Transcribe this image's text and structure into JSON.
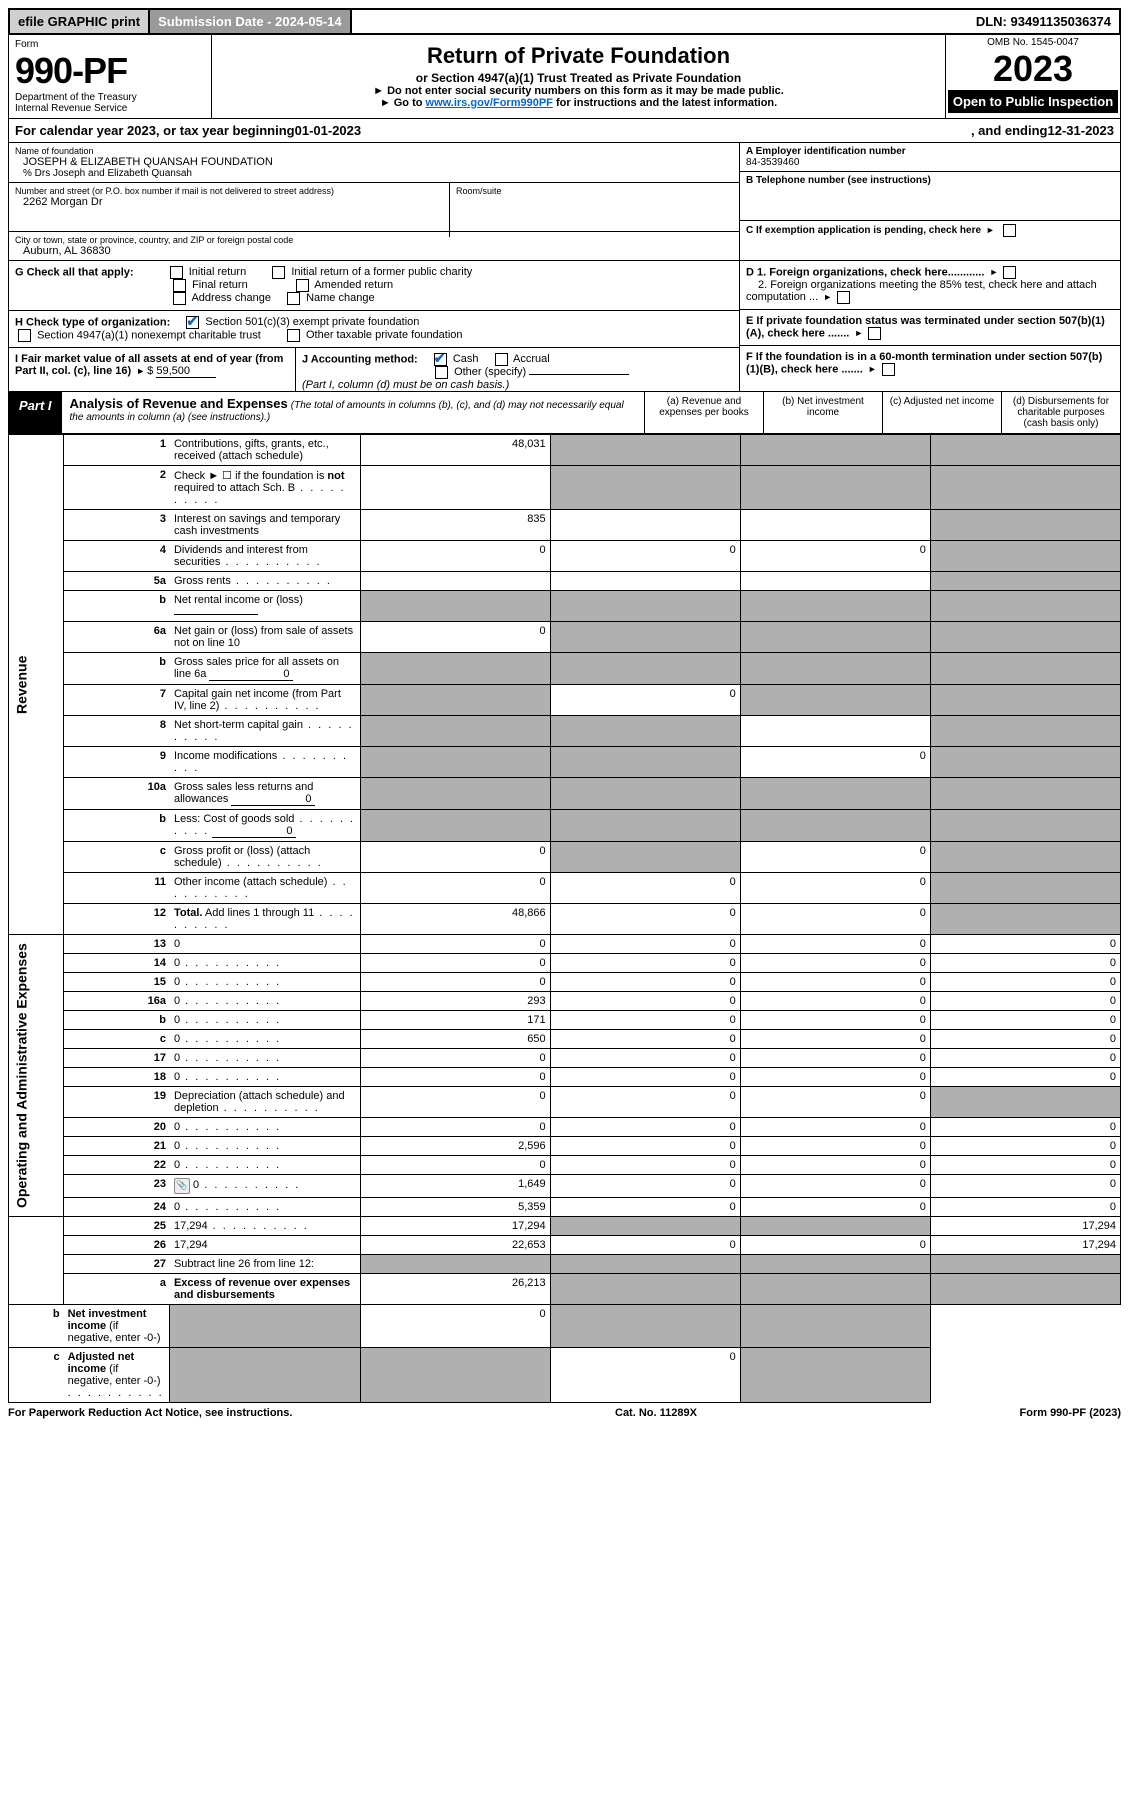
{
  "topbar": {
    "efile": "efile GRAPHIC print",
    "sub_date_label": "Submission Date - ",
    "sub_date": "2024-05-14",
    "dln_label": "DLN: ",
    "dln": "93491135036374"
  },
  "header": {
    "form_label": "Form",
    "form_no": "990-PF",
    "dept": "Department of the Treasury",
    "irs": "Internal Revenue Service",
    "title": "Return of Private Foundation",
    "subtitle": "or Section 4947(a)(1) Trust Treated as Private Foundation",
    "note1": "► Do not enter social security numbers on this form as it may be made public.",
    "note2_pre": "► Go to ",
    "note2_link": "www.irs.gov/Form990PF",
    "note2_post": " for instructions and the latest information.",
    "omb": "OMB No. 1545-0047",
    "year": "2023",
    "open": "Open to Public Inspection"
  },
  "cal_year": {
    "pre": "For calendar year 2023, or tax year beginning ",
    "begin": "01-01-2023",
    "mid": ", and ending ",
    "end": "12-31-2023"
  },
  "info": {
    "name_label": "Name of foundation",
    "name": "JOSEPH & ELIZABETH QUANSAH FOUNDATION",
    "care_of": "% Drs Joseph and Elizabeth Quansah",
    "addr_label": "Number and street (or P.O. box number if mail is not delivered to street address)",
    "addr": "2262 Morgan Dr",
    "room_label": "Room/suite",
    "city_label": "City or town, state or province, country, and ZIP or foreign postal code",
    "city": "Auburn, AL  36830",
    "a_label": "A Employer identification number",
    "a_val": "84-3539460",
    "b_label": "B Telephone number (see instructions)",
    "c_label": "C If exemption application is pending, check here",
    "d1": "D 1. Foreign organizations, check here............",
    "d2": "2. Foreign organizations meeting the 85% test, check here and attach computation ...",
    "e": "E  If private foundation status was terminated under section 507(b)(1)(A), check here .......",
    "f": "F  If the foundation is in a 60-month termination under section 507(b)(1)(B), check here .......",
    "g_label": "G Check all that apply:",
    "g_opts": [
      "Initial return",
      "Initial return of a former public charity",
      "Final return",
      "Amended return",
      "Address change",
      "Name change"
    ],
    "h_label": "H Check type of organization:",
    "h_opts": [
      "Section 501(c)(3) exempt private foundation",
      "Section 4947(a)(1) nonexempt charitable trust",
      "Other taxable private foundation"
    ],
    "i_label": "I Fair market value of all assets at end of year (from Part II, col. (c), line 16)",
    "i_val": "59,500",
    "j_label": "J Accounting method:",
    "j_opts": [
      "Cash",
      "Accrual"
    ],
    "j_other": "Other (specify)",
    "j_note": "(Part I, column (d) must be on cash basis.)"
  },
  "part1": {
    "label": "Part I",
    "title": "Analysis of Revenue and Expenses",
    "note": "(The total of amounts in columns (b), (c), and (d) may not necessarily equal the amounts in column (a) (see instructions).)",
    "cols": {
      "a": "(a)   Revenue and expenses per books",
      "b": "(b)   Net investment income",
      "c": "(c)   Adjusted net income",
      "d": "(d)   Disbursements for charitable purposes (cash basis only)"
    }
  },
  "sections": {
    "revenue": "Revenue",
    "expenses": "Operating and Administrative Expenses"
  },
  "rows": [
    {
      "n": "1",
      "d": "Contributions, gifts, grants, etc., received (attach schedule)",
      "a": "48,031",
      "b_sh": true,
      "c_sh": true,
      "d_sh": true
    },
    {
      "n": "2",
      "d": "Check ► ☐ if the foundation is <b>not</b> required to attach Sch. B",
      "dots": true,
      "a": "",
      "b_sh": true,
      "c_sh": true,
      "d_sh": true
    },
    {
      "n": "3",
      "d": "Interest on savings and temporary cash investments",
      "a": "835",
      "b": "",
      "c": "",
      "d_sh": true
    },
    {
      "n": "4",
      "d": "Dividends and interest from securities",
      "dots": true,
      "a": "0",
      "b": "0",
      "c": "0",
      "d_sh": true
    },
    {
      "n": "5a",
      "d": "Gross rents",
      "dots": true,
      "a": "",
      "b": "",
      "c": "",
      "d_sh": true
    },
    {
      "n": "b",
      "d": "Net rental income or (loss)",
      "inline": "",
      "a_sh": true,
      "b_sh": true,
      "c_sh": true,
      "d_sh": true
    },
    {
      "n": "6a",
      "d": "Net gain or (loss) from sale of assets not on line 10",
      "a": "0",
      "b_sh": true,
      "c_sh": true,
      "d_sh": true
    },
    {
      "n": "b",
      "d": "Gross sales price for all assets on line 6a",
      "inline": "0",
      "a_sh": true,
      "b_sh": true,
      "c_sh": true,
      "d_sh": true
    },
    {
      "n": "7",
      "d": "Capital gain net income (from Part IV, line 2)",
      "dots": true,
      "a_sh": true,
      "b": "0",
      "c_sh": true,
      "d_sh": true
    },
    {
      "n": "8",
      "d": "Net short-term capital gain",
      "dots": true,
      "a_sh": true,
      "b_sh": true,
      "c": "",
      "d_sh": true
    },
    {
      "n": "9",
      "d": "Income modifications",
      "dots": true,
      "a_sh": true,
      "b_sh": true,
      "c": "0",
      "d_sh": true
    },
    {
      "n": "10a",
      "d": "Gross sales less returns and allowances",
      "inline": "0",
      "a_sh": true,
      "b_sh": true,
      "c_sh": true,
      "d_sh": true
    },
    {
      "n": "b",
      "d": "Less: Cost of goods sold",
      "dots": true,
      "inline": "0",
      "a_sh": true,
      "b_sh": true,
      "c_sh": true,
      "d_sh": true
    },
    {
      "n": "c",
      "d": "Gross profit or (loss) (attach schedule)",
      "dots": true,
      "a": "0",
      "b_sh": true,
      "c": "0",
      "d_sh": true
    },
    {
      "n": "11",
      "d": "Other income (attach schedule)",
      "dots": true,
      "a": "0",
      "b": "0",
      "c": "0",
      "d_sh": true
    },
    {
      "n": "12",
      "d": "<b>Total.</b> Add lines 1 through 11",
      "dots": true,
      "a": "48,866",
      "b": "0",
      "c": "0",
      "d_sh": true
    },
    {
      "n": "13",
      "d": "0",
      "a": "0",
      "b": "0",
      "c": "0"
    },
    {
      "n": "14",
      "d": "0",
      "dots": true,
      "a": "0",
      "b": "0",
      "c": "0"
    },
    {
      "n": "15",
      "d": "0",
      "dots": true,
      "a": "0",
      "b": "0",
      "c": "0"
    },
    {
      "n": "16a",
      "d": "0",
      "dots": true,
      "a": "293",
      "b": "0",
      "c": "0"
    },
    {
      "n": "b",
      "d": "0",
      "dots": true,
      "a": "171",
      "b": "0",
      "c": "0"
    },
    {
      "n": "c",
      "d": "0",
      "dots": true,
      "a": "650",
      "b": "0",
      "c": "0"
    },
    {
      "n": "17",
      "d": "0",
      "dots": true,
      "a": "0",
      "b": "0",
      "c": "0"
    },
    {
      "n": "18",
      "d": "0",
      "dots": true,
      "a": "0",
      "b": "0",
      "c": "0"
    },
    {
      "n": "19",
      "d": "Depreciation (attach schedule) and depletion",
      "dots": true,
      "a": "0",
      "b": "0",
      "c": "0",
      "d_sh": true
    },
    {
      "n": "20",
      "d": "0",
      "dots": true,
      "a": "0",
      "b": "0",
      "c": "0"
    },
    {
      "n": "21",
      "d": "0",
      "dots": true,
      "a": "2,596",
      "b": "0",
      "c": "0"
    },
    {
      "n": "22",
      "d": "0",
      "dots": true,
      "a": "0",
      "b": "0",
      "c": "0"
    },
    {
      "n": "23",
      "d": "0",
      "dots": true,
      "icon": true,
      "a": "1,649",
      "b": "0",
      "c": "0"
    },
    {
      "n": "24",
      "d": "0",
      "dots": true,
      "a": "5,359",
      "b": "0",
      "c": "0"
    },
    {
      "n": "25",
      "d": "17,294",
      "dots": true,
      "a": "17,294",
      "b_sh": true,
      "c_sh": true
    },
    {
      "n": "26",
      "d": "17,294",
      "a": "22,653",
      "b": "0",
      "c": "0"
    },
    {
      "n": "27",
      "d": "Subtract line 26 from line 12:",
      "a_sh": true,
      "b_sh": true,
      "c_sh": true,
      "d_sh": true
    },
    {
      "n": "a",
      "d": "<b>Excess of revenue over expenses and disbursements</b>",
      "a": "26,213",
      "b_sh": true,
      "c_sh": true,
      "d_sh": true
    },
    {
      "n": "b",
      "d": "<b>Net investment income</b> (if negative, enter -0-)",
      "a_sh": true,
      "b": "0",
      "c_sh": true,
      "d_sh": true
    },
    {
      "n": "c",
      "d": "<b>Adjusted net income</b> (if negative, enter -0-)",
      "dots": true,
      "a_sh": true,
      "b_sh": true,
      "c": "0",
      "d_sh": true
    }
  ],
  "footer": {
    "left": "For Paperwork Reduction Act Notice, see instructions.",
    "mid": "Cat. No. 11289X",
    "right": "Form 990-PF (2023)"
  },
  "colors": {
    "shaded": "#b0b0b0",
    "link": "#0066cc",
    "check": "#1565c0"
  }
}
